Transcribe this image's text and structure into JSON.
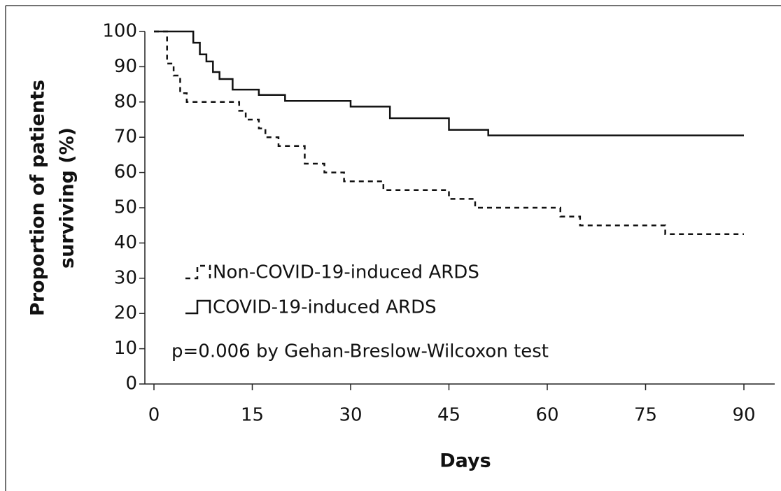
{
  "chart_data": {
    "type": "step",
    "xlabel": "Days",
    "ylabel": [
      "Proportion of patients",
      "surviving (%)"
    ],
    "annotation": "p=0.006 by Gehan-Breslow-Wilcoxon test",
    "xlim": [
      0,
      90
    ],
    "xticks": [
      0,
      15,
      30,
      45,
      60,
      75,
      90
    ],
    "ylim": [
      0,
      100
    ],
    "yticks": [
      0,
      10,
      20,
      30,
      40,
      50,
      60,
      70,
      80,
      90,
      100
    ],
    "series": [
      {
        "name": "Non-COVID-19-induced ARDS",
        "color": "#111111",
        "style": "dashed",
        "x": [
          0,
          2,
          3,
          4,
          5,
          13,
          14,
          16,
          17,
          19,
          23,
          26,
          29,
          35,
          45,
          49,
          62,
          65,
          78,
          90
        ],
        "values": [
          100,
          90.9,
          87.5,
          82.5,
          80,
          77.5,
          75,
          72.5,
          70,
          67.5,
          62.5,
          60,
          57.5,
          55,
          52.5,
          50,
          47.5,
          45,
          42.5,
          42.5
        ]
      },
      {
        "name": "COVID-19-induced ARDS",
        "color": "#111111",
        "style": "solid",
        "x": [
          0,
          6,
          7,
          8,
          9,
          10,
          12,
          16,
          20,
          30,
          36,
          45,
          51,
          90
        ],
        "values": [
          100,
          96.8,
          93.5,
          91.5,
          88.5,
          86.5,
          83.5,
          82,
          80.3,
          78.7,
          75.4,
          72.1,
          70.5,
          70.5
        ]
      }
    ]
  }
}
